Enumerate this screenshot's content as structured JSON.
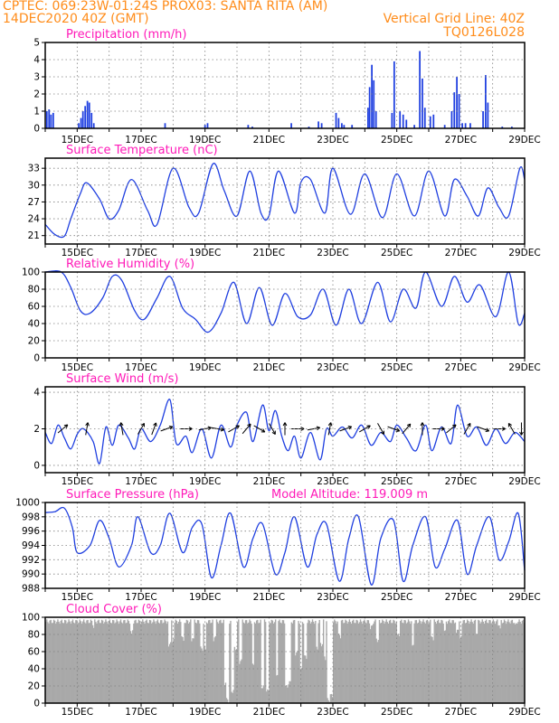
{
  "header": {
    "line1_left": "CPTEC:   069:23W-01:24S   PROX03: SANTA RITA (AM)",
    "line2_left": "14DEC2020 40Z (GMT)",
    "line2_right": "Vertical Grid Line: 40Z",
    "line3_right": "TQ0126L028"
  },
  "colors": {
    "header": "#ff8c1a",
    "title": "#ff1ab8",
    "line": "#1f3fe0",
    "bars": "#1f3fe0",
    "cloud": "#a9a9a9"
  },
  "chart_data": [
    {
      "type": "bar",
      "title": "Precipitation (mm/h)",
      "ylim": [
        0,
        5
      ],
      "yticks": [
        "0",
        "1",
        "2",
        "3",
        "4",
        "5"
      ],
      "x_ticks": [
        "15DEC",
        "17DEC",
        "19DEC",
        "21DEC",
        "23DEC",
        "25DEC",
        "27DEC",
        "29DEC"
      ],
      "xlim_days": [
        14.0,
        29.0
      ],
      "values": [
        [
          14.05,
          1.0
        ],
        [
          14.12,
          1.1
        ],
        [
          14.18,
          0.8
        ],
        [
          14.25,
          0.9
        ],
        [
          15.05,
          0.3
        ],
        [
          15.12,
          0.6
        ],
        [
          15.18,
          1.0
        ],
        [
          15.25,
          1.3
        ],
        [
          15.32,
          1.6
        ],
        [
          15.38,
          1.5
        ],
        [
          15.45,
          0.9
        ],
        [
          15.52,
          0.3
        ],
        [
          17.75,
          0.3
        ],
        [
          19.0,
          0.2
        ],
        [
          19.08,
          0.3
        ],
        [
          20.35,
          0.2
        ],
        [
          20.48,
          0.1
        ],
        [
          21.7,
          0.3
        ],
        [
          22.25,
          0.1
        ],
        [
          22.55,
          0.4
        ],
        [
          22.65,
          0.3
        ],
        [
          23.1,
          0.9
        ],
        [
          23.18,
          0.6
        ],
        [
          23.28,
          0.3
        ],
        [
          23.35,
          0.2
        ],
        [
          23.6,
          0.2
        ],
        [
          24.1,
          1.2
        ],
        [
          24.15,
          2.4
        ],
        [
          24.22,
          3.7
        ],
        [
          24.28,
          2.8
        ],
        [
          24.35,
          1.0
        ],
        [
          24.85,
          0.9
        ],
        [
          24.92,
          3.9
        ],
        [
          25.1,
          1.0
        ],
        [
          25.2,
          0.8
        ],
        [
          25.3,
          0.5
        ],
        [
          25.55,
          0.2
        ],
        [
          25.72,
          4.5
        ],
        [
          25.8,
          2.9
        ],
        [
          25.88,
          1.2
        ],
        [
          26.05,
          0.7
        ],
        [
          26.15,
          0.8
        ],
        [
          26.5,
          0.2
        ],
        [
          26.72,
          1.0
        ],
        [
          26.8,
          2.1
        ],
        [
          26.88,
          3.0
        ],
        [
          26.95,
          2.0
        ],
        [
          27.05,
          0.3
        ],
        [
          27.15,
          0.3
        ],
        [
          27.3,
          0.3
        ],
        [
          27.7,
          1.0
        ],
        [
          27.78,
          3.1
        ],
        [
          27.85,
          1.5
        ],
        [
          28.3,
          0.1
        ],
        [
          28.6,
          0.1
        ]
      ]
    },
    {
      "type": "line",
      "title": "Surface Temperature (nC)",
      "ylim": [
        19.5,
        34.8
      ],
      "yticks": [
        "21",
        "24",
        "27",
        "30",
        "33"
      ],
      "x_ticks": [
        "15DEC",
        "17DEC",
        "19DEC",
        "21DEC",
        "23DEC",
        "25DEC",
        "27DEC",
        "29DEC"
      ],
      "xlim_days": [
        14.0,
        29.0
      ],
      "points": [
        [
          14.0,
          23.0
        ],
        [
          14.3,
          21.2
        ],
        [
          14.6,
          20.9
        ],
        [
          14.8,
          24.0
        ],
        [
          15.1,
          28.5
        ],
        [
          15.3,
          30.4
        ],
        [
          15.7,
          27.5
        ],
        [
          16.0,
          24.0
        ],
        [
          16.3,
          25.5
        ],
        [
          16.7,
          31.0
        ],
        [
          17.2,
          25.5
        ],
        [
          17.5,
          23.0
        ],
        [
          18.0,
          33.0
        ],
        [
          18.5,
          26.0
        ],
        [
          18.8,
          25.0
        ],
        [
          19.25,
          33.8
        ],
        [
          19.6,
          29.0
        ],
        [
          20.0,
          24.5
        ],
        [
          20.4,
          32.5
        ],
        [
          20.75,
          25.0
        ],
        [
          21.0,
          24.5
        ],
        [
          21.3,
          32.5
        ],
        [
          21.8,
          25.0
        ],
        [
          22.0,
          30.5
        ],
        [
          22.3,
          31.0
        ],
        [
          22.75,
          25.0
        ],
        [
          23.0,
          33.0
        ],
        [
          23.55,
          24.8
        ],
        [
          24.0,
          32.0
        ],
        [
          24.55,
          24.2
        ],
        [
          25.0,
          32.0
        ],
        [
          25.55,
          24.5
        ],
        [
          26.0,
          32.5
        ],
        [
          26.5,
          24.5
        ],
        [
          26.8,
          31.0
        ],
        [
          27.2,
          28.0
        ],
        [
          27.55,
          24.5
        ],
        [
          27.85,
          29.5
        ],
        [
          28.2,
          26.0
        ],
        [
          28.5,
          24.5
        ],
        [
          28.85,
          33.0
        ],
        [
          29.0,
          31.0
        ]
      ]
    },
    {
      "type": "line",
      "title": "Relative Humidity (%)",
      "ylim": [
        0,
        100
      ],
      "yticks": [
        "0",
        "20",
        "40",
        "60",
        "80",
        "100"
      ],
      "x_ticks": [
        "15DEC",
        "17DEC",
        "19DEC",
        "21DEC",
        "23DEC",
        "25DEC",
        "27DEC",
        "29DEC"
      ],
      "xlim_days": [
        14.0,
        29.0
      ],
      "points": [
        [
          14.0,
          100
        ],
        [
          14.5,
          100
        ],
        [
          14.8,
          82
        ],
        [
          15.1,
          55
        ],
        [
          15.4,
          52
        ],
        [
          15.8,
          70
        ],
        [
          16.1,
          95
        ],
        [
          16.4,
          90
        ],
        [
          16.8,
          55
        ],
        [
          17.1,
          45
        ],
        [
          17.5,
          70
        ],
        [
          17.9,
          95
        ],
        [
          18.3,
          58
        ],
        [
          18.7,
          45
        ],
        [
          19.1,
          30
        ],
        [
          19.5,
          52
        ],
        [
          19.9,
          88
        ],
        [
          20.3,
          40
        ],
        [
          20.7,
          82
        ],
        [
          21.1,
          38
        ],
        [
          21.5,
          75
        ],
        [
          21.9,
          48
        ],
        [
          22.3,
          50
        ],
        [
          22.7,
          80
        ],
        [
          23.1,
          38
        ],
        [
          23.5,
          80
        ],
        [
          23.9,
          40
        ],
        [
          24.4,
          88
        ],
        [
          24.8,
          42
        ],
        [
          25.2,
          80
        ],
        [
          25.6,
          58
        ],
        [
          25.9,
          100
        ],
        [
          26.4,
          60
        ],
        [
          26.8,
          95
        ],
        [
          27.2,
          65
        ],
        [
          27.6,
          85
        ],
        [
          28.1,
          48
        ],
        [
          28.5,
          100
        ],
        [
          28.8,
          40
        ],
        [
          29.0,
          52
        ]
      ]
    },
    {
      "type": "line",
      "title": "Surface Wind (m/s)",
      "ylim": [
        -0.4,
        4.3
      ],
      "yticks": [
        "0",
        "2",
        "4"
      ],
      "x_ticks": [
        "15DEC",
        "17DEC",
        "19DEC",
        "21DEC",
        "23DEC",
        "25DEC",
        "27DEC",
        "29DEC"
      ],
      "xlim_days": [
        14.0,
        29.0
      ],
      "points": [
        [
          14.0,
          1.8
        ],
        [
          14.2,
          1.2
        ],
        [
          14.4,
          2.2
        ],
        [
          14.6,
          1.5
        ],
        [
          14.8,
          0.9
        ],
        [
          15.0,
          1.7
        ],
        [
          15.2,
          2.0
        ],
        [
          15.5,
          1.3
        ],
        [
          15.7,
          0.1
        ],
        [
          15.9,
          2.1
        ],
        [
          16.1,
          1.1
        ],
        [
          16.3,
          2.2
        ],
        [
          16.6,
          1.5
        ],
        [
          16.8,
          0.9
        ],
        [
          17.0,
          2.0
        ],
        [
          17.3,
          1.3
        ],
        [
          17.6,
          2.2
        ],
        [
          17.9,
          3.6
        ],
        [
          18.1,
          1.2
        ],
        [
          18.4,
          1.6
        ],
        [
          18.6,
          0.7
        ],
        [
          18.9,
          2.0
        ],
        [
          19.2,
          0.4
        ],
        [
          19.5,
          2.2
        ],
        [
          19.8,
          1.0
        ],
        [
          20.0,
          2.2
        ],
        [
          20.3,
          2.9
        ],
        [
          20.5,
          1.3
        ],
        [
          20.8,
          3.3
        ],
        [
          21.0,
          1.9
        ],
        [
          21.2,
          3.0
        ],
        [
          21.4,
          1.6
        ],
        [
          21.6,
          0.8
        ],
        [
          21.8,
          1.6
        ],
        [
          22.0,
          0.4
        ],
        [
          22.3,
          1.8
        ],
        [
          22.6,
          0.3
        ],
        [
          22.8,
          2.0
        ],
        [
          23.0,
          1.6
        ],
        [
          23.3,
          2.1
        ],
        [
          23.6,
          1.5
        ],
        [
          23.9,
          2.2
        ],
        [
          24.2,
          1.1
        ],
        [
          24.5,
          1.8
        ],
        [
          24.8,
          1.3
        ],
        [
          25.0,
          2.2
        ],
        [
          25.3,
          1.5
        ],
        [
          25.6,
          0.8
        ],
        [
          25.9,
          2.2
        ],
        [
          26.1,
          0.8
        ],
        [
          26.4,
          2.1
        ],
        [
          26.7,
          1.2
        ],
        [
          26.9,
          3.3
        ],
        [
          27.2,
          1.6
        ],
        [
          27.5,
          2.1
        ],
        [
          27.8,
          1.1
        ],
        [
          28.1,
          2.0
        ],
        [
          28.4,
          1.2
        ],
        [
          28.7,
          1.8
        ],
        [
          29.0,
          1.3
        ]
      ]
    },
    {
      "type": "line",
      "title": "Surface Pressure (hPa)",
      "subtitle": "Model Altitude: 119.009 m",
      "ylim": [
        988,
        1000
      ],
      "yticks": [
        "988",
        "990",
        "992",
        "994",
        "996",
        "998",
        "1000"
      ],
      "x_ticks": [
        "15DEC",
        "17DEC",
        "19DEC",
        "21DEC",
        "23DEC",
        "25DEC",
        "27DEC",
        "29DEC"
      ],
      "xlim_days": [
        14.0,
        29.0
      ],
      "points": [
        [
          14.0,
          998.6
        ],
        [
          14.3,
          998.7
        ],
        [
          14.6,
          999.2
        ],
        [
          14.85,
          996.5
        ],
        [
          15.0,
          993.0
        ],
        [
          15.4,
          994.0
        ],
        [
          15.7,
          997.5
        ],
        [
          16.0,
          995.0
        ],
        [
          16.3,
          991.0
        ],
        [
          16.7,
          994.0
        ],
        [
          16.9,
          998.0
        ],
        [
          17.3,
          993.0
        ],
        [
          17.6,
          994.0
        ],
        [
          17.9,
          998.5
        ],
        [
          18.3,
          993.0
        ],
        [
          18.6,
          996.5
        ],
        [
          18.9,
          997.0
        ],
        [
          19.2,
          989.5
        ],
        [
          19.5,
          994.0
        ],
        [
          19.8,
          998.5
        ],
        [
          20.2,
          991.0
        ],
        [
          20.5,
          995.0
        ],
        [
          20.8,
          997.0
        ],
        [
          21.2,
          990.0
        ],
        [
          21.5,
          993.0
        ],
        [
          21.8,
          998.0
        ],
        [
          22.2,
          991.0
        ],
        [
          22.5,
          995.5
        ],
        [
          22.8,
          997.0
        ],
        [
          23.2,
          989.0
        ],
        [
          23.5,
          995.0
        ],
        [
          23.8,
          998.0
        ],
        [
          24.2,
          988.5
        ],
        [
          24.5,
          995.0
        ],
        [
          24.9,
          997.5
        ],
        [
          25.2,
          989.0
        ],
        [
          25.5,
          994.0
        ],
        [
          25.9,
          998.0
        ],
        [
          26.2,
          991.0
        ],
        [
          26.5,
          993.5
        ],
        [
          26.9,
          997.5
        ],
        [
          27.2,
          990.0
        ],
        [
          27.5,
          994.0
        ],
        [
          27.9,
          998.0
        ],
        [
          28.2,
          992.0
        ],
        [
          28.5,
          994.5
        ],
        [
          28.8,
          998.5
        ],
        [
          29.0,
          990.5
        ]
      ]
    },
    {
      "type": "bar",
      "title": "Cloud Cover (%)",
      "ylim": [
        0,
        100
      ],
      "yticks": [
        "0",
        "20",
        "40",
        "60",
        "80",
        "100"
      ],
      "x_ticks": [
        "15DEC",
        "17DEC",
        "19DEC",
        "21DEC",
        "23DEC",
        "25DEC",
        "27DEC",
        "29DEC"
      ],
      "xlim_days": [
        14.0,
        29.0
      ],
      "baseline": 95,
      "dips": [
        [
          15.5,
          85
        ],
        [
          16.7,
          80
        ],
        [
          17.9,
          65
        ],
        [
          18.0,
          70
        ],
        [
          18.3,
          72
        ],
        [
          18.6,
          70
        ],
        [
          18.9,
          60
        ],
        [
          19.0,
          60
        ],
        [
          19.3,
          72
        ],
        [
          19.65,
          20
        ],
        [
          19.7,
          0
        ],
        [
          19.85,
          10
        ],
        [
          19.95,
          60
        ],
        [
          20.1,
          45
        ],
        [
          20.5,
          40
        ],
        [
          20.8,
          15
        ],
        [
          20.95,
          10
        ],
        [
          21.25,
          30
        ],
        [
          21.55,
          15
        ],
        [
          21.65,
          20
        ],
        [
          21.85,
          55
        ],
        [
          22.0,
          35
        ],
        [
          22.15,
          50
        ],
        [
          22.5,
          60
        ],
        [
          22.65,
          65
        ],
        [
          22.75,
          50
        ],
        [
          22.85,
          0
        ],
        [
          22.95,
          5
        ],
        [
          23.2,
          75
        ],
        [
          24.2,
          85
        ],
        [
          24.4,
          70
        ],
        [
          25.05,
          75
        ],
        [
          25.5,
          62
        ],
        [
          26.1,
          72
        ],
        [
          26.5,
          82
        ],
        [
          26.9,
          80
        ],
        [
          27.0,
          72
        ],
        [
          27.5,
          75
        ],
        [
          28.2,
          85
        ],
        [
          28.7,
          90
        ]
      ]
    }
  ]
}
